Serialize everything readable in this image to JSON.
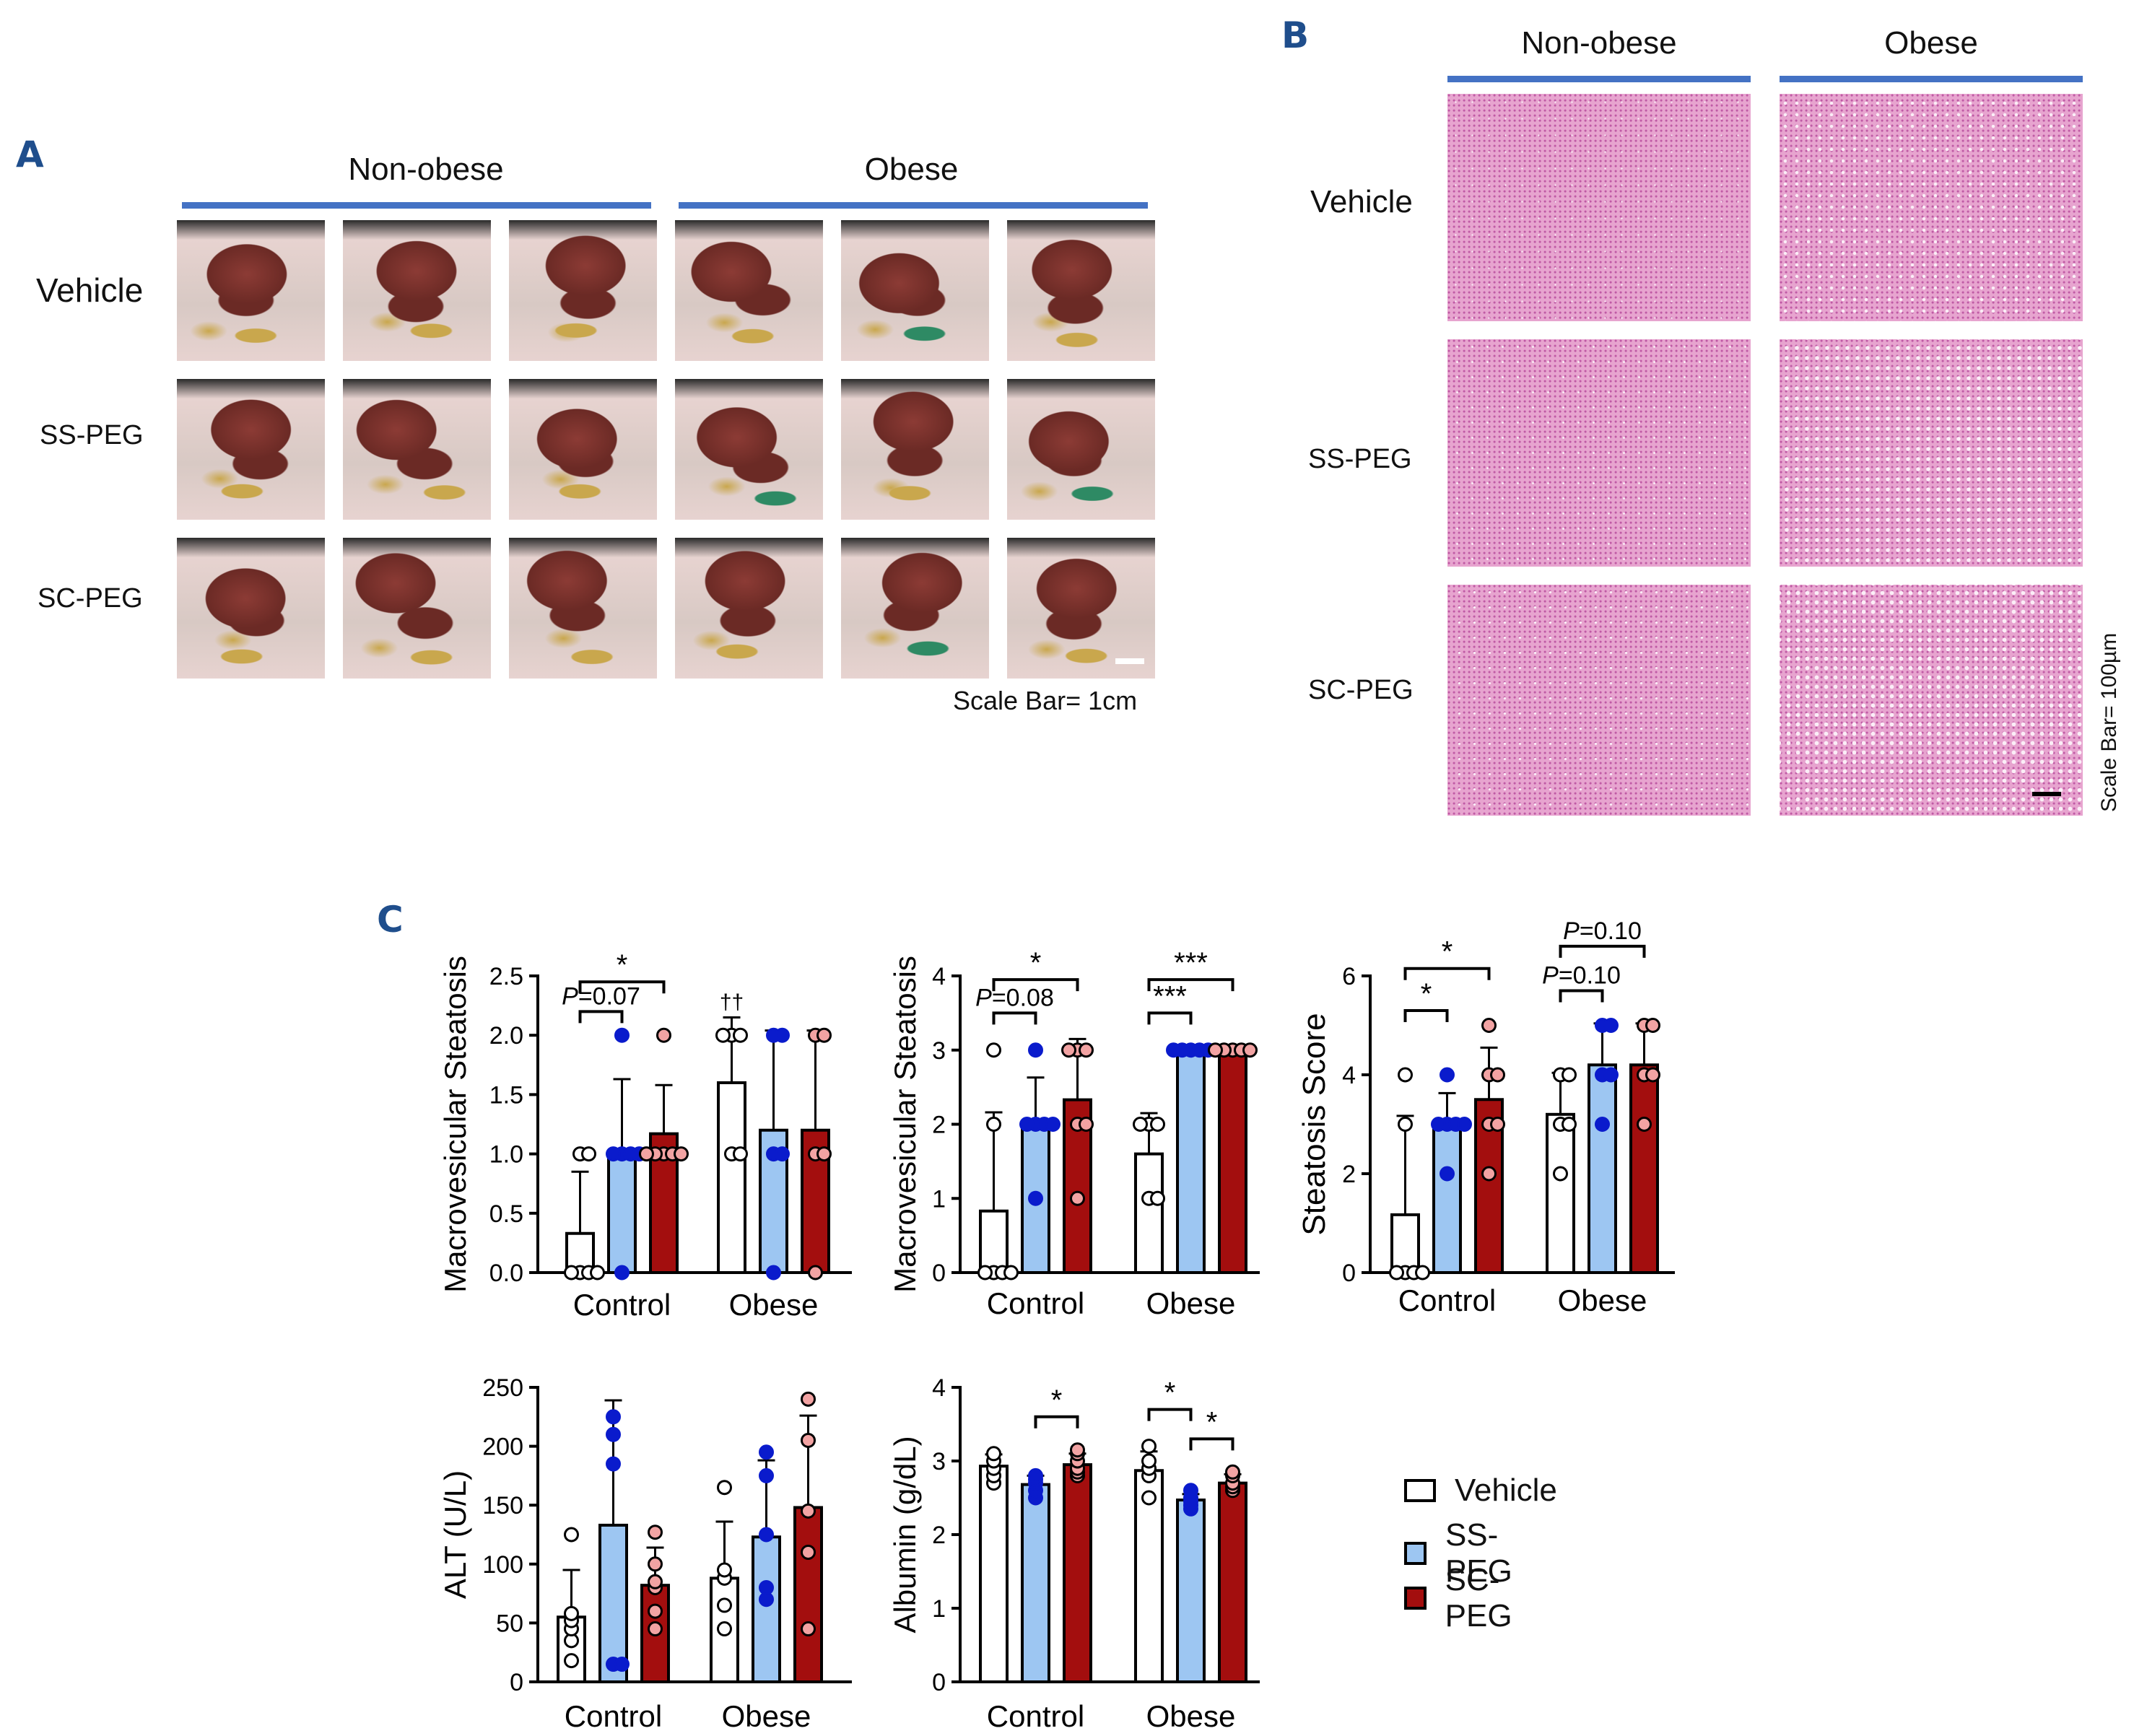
{
  "panel_a": {
    "letter": "A",
    "groups": [
      "Non-obese",
      "Obese"
    ],
    "rows": [
      "Vehicle",
      "SS-PEG",
      "SC-PEG"
    ],
    "scale_label": "Scale Bar= 1cm",
    "photo_palette": {
      "tissue_dark": "#6b2a25",
      "tissue_mid": "#8c3b35",
      "bg_light": "#d8c9c4",
      "bg_pink": "#e7d3d0",
      "fur": "#2a2a2a",
      "intestine_yellow": "#c9a74d",
      "intestine_green": "#2e8a64"
    }
  },
  "panel_b": {
    "letter": "B",
    "groups": [
      "Non-obese",
      "Obese"
    ],
    "rows": [
      "Vehicle",
      "SS-PEG",
      "SC-PEG"
    ],
    "scale_label": "Scale Bar= 100µm",
    "stain_colors": {
      "base": "#e7a4cf",
      "nuclei": "#c05aa5",
      "vacuole": "#fbeef7"
    },
    "vacuole_density": [
      [
        0.05,
        0.55
      ],
      [
        0.2,
        0.75
      ],
      [
        0.25,
        0.8
      ]
    ]
  },
  "panel_c": {
    "letter": "C"
  },
  "legend": {
    "items": [
      {
        "label": "Vehicle",
        "color": "#ffffff"
      },
      {
        "label": "SS-PEG",
        "color": "#9dc6f2"
      },
      {
        "label": "SC-PEG",
        "color": "#a30e0e"
      }
    ]
  },
  "chart_data": [
    {
      "type": "bar",
      "ylabel": "Macrovesicular Steatosis",
      "ylim": [
        0,
        2.5
      ],
      "yticks": [
        "0.0",
        "0.5",
        "1.0",
        "1.5",
        "2.0",
        "2.5"
      ],
      "categories": [
        "Control",
        "Obese"
      ],
      "series": [
        {
          "name": "Vehicle",
          "values": [
            0.33,
            1.6
          ],
          "err": [
            0.52,
            0.55
          ],
          "points": [
            [
              0,
              0,
              0,
              0,
              1,
              1
            ],
            [
              1,
              1,
              2,
              2,
              2
            ]
          ]
        },
        {
          "name": "SS-PEG",
          "values": [
            1.0,
            1.2
          ],
          "err": [
            0.63,
            0.84
          ],
          "points": [
            [
              0,
              1,
              1,
              1,
              1,
              2
            ],
            [
              0,
              1,
              1,
              2,
              2
            ]
          ]
        },
        {
          "name": "SC-PEG",
          "values": [
            1.17,
            1.2
          ],
          "err": [
            0.41,
            0.84
          ],
          "points": [
            [
              1,
              1,
              1,
              1,
              1,
              2
            ],
            [
              0,
              1,
              1,
              2,
              2
            ]
          ]
        }
      ],
      "annotations": [
        {
          "text": "*",
          "group": 0,
          "from": 0,
          "to": 2,
          "level": 2.45
        },
        {
          "text": "P=0.07",
          "group": 0,
          "from": 0,
          "to": 1,
          "level": 2.2
        },
        {
          "text": "††",
          "group": 1,
          "bar": 0,
          "level": 2.22
        }
      ]
    },
    {
      "type": "bar",
      "ylabel": "Macrovesicular Steatosis",
      "ylim": [
        0,
        4
      ],
      "yticks": [
        "0",
        "1",
        "2",
        "3",
        "4"
      ],
      "categories": [
        "Control",
        "Obese"
      ],
      "series": [
        {
          "name": "Vehicle",
          "values": [
            0.83,
            1.6
          ],
          "err": [
            1.33,
            0.55
          ],
          "points": [
            [
              0,
              0,
              0,
              0,
              2,
              3
            ],
            [
              1,
              1,
              2,
              2,
              2
            ]
          ]
        },
        {
          "name": "SS-PEG",
          "values": [
            2.0,
            3.0
          ],
          "err": [
            0.63,
            0.0
          ],
          "points": [
            [
              1,
              2,
              2,
              2,
              2,
              3
            ],
            [
              3,
              3,
              3,
              3,
              3
            ]
          ]
        },
        {
          "name": "SC-PEG",
          "values": [
            2.33,
            3.0
          ],
          "err": [
            0.82,
            0.0
          ],
          "points": [
            [
              1,
              2,
              2,
              3,
              3,
              3
            ],
            [
              3,
              3,
              3,
              3,
              3
            ]
          ]
        }
      ],
      "annotations": [
        {
          "text": "*",
          "group": 0,
          "from": 0,
          "to": 2,
          "level": 3.95
        },
        {
          "text": "P=0.08",
          "group": 0,
          "from": 0,
          "to": 1,
          "level": 3.5
        },
        {
          "text": "***",
          "group": 1,
          "from": 0,
          "to": 2,
          "level": 3.95
        },
        {
          "text": "***",
          "group": 1,
          "from": 0,
          "to": 1,
          "level": 3.5
        }
      ]
    },
    {
      "type": "bar",
      "ylabel": "Steatosis Score",
      "ylim": [
        0,
        6
      ],
      "yticks": [
        "0",
        "2",
        "4",
        "6"
      ],
      "categories": [
        "Control",
        "Obese"
      ],
      "series": [
        {
          "name": "Vehicle",
          "values": [
            1.17,
            3.2
          ],
          "err": [
            2.0,
            0.84
          ],
          "points": [
            [
              0,
              0,
              0,
              0,
              3,
              4
            ],
            [
              2,
              3,
              3,
              4,
              4
            ]
          ]
        },
        {
          "name": "SS-PEG",
          "values": [
            3.0,
            4.2
          ],
          "err": [
            0.63,
            0.84
          ],
          "points": [
            [
              2,
              3,
              3,
              3,
              3,
              4
            ],
            [
              3,
              4,
              4,
              5,
              5
            ]
          ]
        },
        {
          "name": "SC-PEG",
          "values": [
            3.5,
            4.2
          ],
          "err": [
            1.05,
            0.84
          ],
          "points": [
            [
              2,
              3,
              3,
              4,
              4,
              5
            ],
            [
              3,
              4,
              4,
              5,
              5
            ]
          ]
        }
      ],
      "annotations": [
        {
          "text": "*",
          "group": 0,
          "from": 0,
          "to": 2,
          "level": 6.15
        },
        {
          "text": "*",
          "group": 0,
          "from": 0,
          "to": 1,
          "level": 5.3
        },
        {
          "text": "P=0.10",
          "group": 1,
          "from": 0,
          "to": 2,
          "level": 6.6
        },
        {
          "text": "P=0.10",
          "group": 1,
          "from": 0,
          "to": 1,
          "level": 5.7
        }
      ]
    },
    {
      "type": "bar",
      "ylabel": "ALT (U/L)",
      "ylim": [
        0,
        250
      ],
      "yticks": [
        "0",
        "50",
        "100",
        "150",
        "200",
        "250"
      ],
      "categories": [
        "Control",
        "Obese"
      ],
      "series": [
        {
          "name": "Vehicle",
          "values": [
            55,
            88
          ],
          "err": [
            40,
            48
          ],
          "points": [
            [
              18,
              35,
              45,
              52,
              58,
              125
            ],
            [
              45,
              65,
              88,
              95,
              165
            ]
          ]
        },
        {
          "name": "SS-PEG",
          "values": [
            133,
            123
          ],
          "err": [
            106,
            65
          ],
          "points": [
            [
              15,
              15,
              185,
              210,
              225
            ],
            [
              70,
              80,
              125,
              175,
              195
            ]
          ]
        },
        {
          "name": "SC-PEG",
          "values": [
            82,
            148
          ],
          "err": [
            32,
            78
          ],
          "points": [
            [
              45,
              60,
              80,
              85,
              100,
              127
            ],
            [
              45,
              110,
              145,
              205,
              240
            ]
          ]
        }
      ],
      "annotations": []
    },
    {
      "type": "bar",
      "ylabel": "Albumin (g/dL)",
      "ylim": [
        0,
        4
      ],
      "yticks": [
        "0",
        "1",
        "2",
        "3",
        "4"
      ],
      "categories": [
        "Control",
        "Obese"
      ],
      "series": [
        {
          "name": "Vehicle",
          "values": [
            2.93,
            2.87
          ],
          "err": [
            0.16,
            0.26
          ],
          "points": [
            [
              2.7,
              2.8,
              2.9,
              3.0,
              3.1
            ],
            [
              2.5,
              2.8,
              2.9,
              3.0,
              3.2
            ]
          ]
        },
        {
          "name": "SS-PEG",
          "values": [
            2.68,
            2.47
          ],
          "err": [
            0.12,
            0.08
          ],
          "points": [
            [
              2.5,
              2.6,
              2.7,
              2.75,
              2.8
            ],
            [
              2.35,
              2.4,
              2.45,
              2.5,
              2.6
            ]
          ]
        },
        {
          "name": "SC-PEG",
          "values": [
            2.95,
            2.7
          ],
          "err": [
            0.15,
            0.12
          ],
          "points": [
            [
              2.8,
              2.85,
              2.9,
              3.0,
              3.1,
              3.15
            ],
            [
              2.6,
              2.65,
              2.7,
              2.8,
              2.85
            ]
          ]
        }
      ],
      "annotations": [
        {
          "text": "*",
          "group": 0,
          "from": 1,
          "to": 2,
          "level": 3.6
        },
        {
          "text": "*",
          "group": 1,
          "from": 0,
          "to": 1,
          "level": 3.7
        },
        {
          "text": "*",
          "group": 1,
          "from": 1,
          "to": 2,
          "level": 3.3
        }
      ]
    }
  ]
}
